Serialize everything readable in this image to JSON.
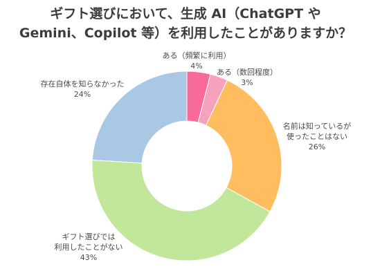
{
  "chart_data": {
    "type": "pie",
    "donut": true,
    "title_lines": [
      "ギフト選びにおいて、生成 AI（ChatGPT や",
      "Gemini、Copilot 等）を利用したことがありますか？"
    ],
    "slices": [
      {
        "label_lines": [
          "ある（頻繁に利用）"
        ],
        "value": 4,
        "value_label": "4%",
        "color": "#f76a9a"
      },
      {
        "label_lines": [
          "ある（数回程度）"
        ],
        "value": 3,
        "value_label": "3%",
        "color": "#f7a2bd"
      },
      {
        "label_lines": [
          "名前は知っているが",
          "使ったことはない"
        ],
        "value": 26,
        "value_label": "26%",
        "color": "#ffbd5f"
      },
      {
        "label_lines": [
          "ギフト選びでは",
          "利用したことがない"
        ],
        "value": 43,
        "value_label": "43%",
        "color": "#c1e79b"
      },
      {
        "label_lines": [
          "存在自体を知らなかった"
        ],
        "value": 24,
        "value_label": "24%",
        "color": "#a8c8e4"
      }
    ]
  }
}
